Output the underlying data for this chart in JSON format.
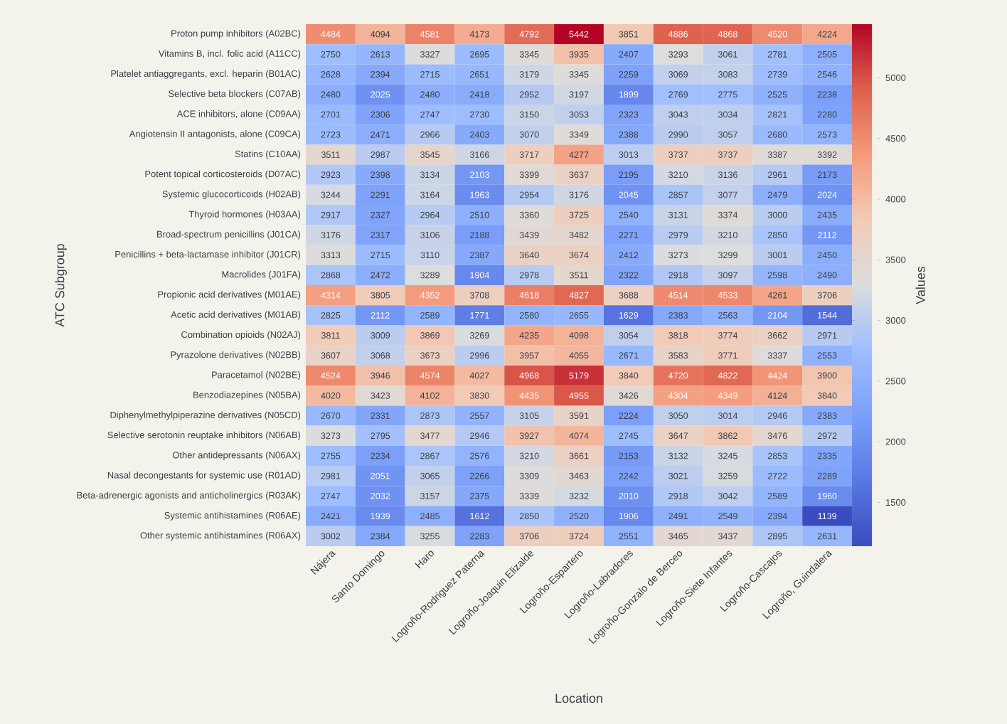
{
  "chart_data": {
    "type": "heatmap",
    "xlabel": "Location",
    "ylabel": "ATC Subgroup",
    "clabel": "Values",
    "data_labels": true,
    "categories": [
      "Nájera",
      "Santo Domingo",
      "Haro",
      "Logroño-Rodriguez Paterna",
      "Logroño-Joaquin Elizalde",
      "Logroño-Espartero",
      "Logroño-Labradores",
      "Logroño-Gonzalo de Berceo",
      "Logroño-Siete Infantes",
      "Logroño-Cascajos",
      "Logroño, Guindalera"
    ],
    "y_categories": [
      "Proton pump inhibitors (A02BC)",
      "Vitamins B, incl. folic acid (A11CC)",
      "Platelet antiaggregants, excl. heparin (B01AC)",
      "Selective beta blockers (C07AB)",
      "ACE inhibitors, alone (C09AA)",
      "Angiotensin II antagonists, alone (C09CA)",
      "Statins (C10AA)",
      "Potent topical corticosteroids (D07AC)",
      "Systemic glucocorticoids (H02AB)",
      "Thyroid hormones (H03AA)",
      "Broad-spectrum penicillins (J01CA)",
      "Penicillins + beta-lactamase inhibitor (J01CR)",
      "Macrolides (J01FA)",
      "Propionic acid derivatives (M01AE)",
      "Acetic acid derivatives (M01AB)",
      "Combination opioids (N02AJ)",
      "Pyrazolone derivatives (N02BB)",
      "Paracetamol (N02BE)",
      "Benzodiazepines (N05BA)",
      "Diphenylmethylpiperazine derivatives (N05CD)",
      "Selective serotonin reuptake inhibitors (N06AB)",
      "Other antidepressants (N06AX)",
      "Nasal decongestants for systemic use (R01AD)",
      "Beta-adrenergic agonists and anticholinergics (R03AK)",
      "Systemic antihistamines (R06AE)",
      "Other systemic antihistamines (R06AX)"
    ],
    "cells": [
      [
        4484,
        4094,
        4581,
        4173,
        4792,
        5442,
        3851,
        4886,
        4868,
        4520,
        4224
      ],
      [
        2750,
        2613,
        3327,
        2695,
        3345,
        3935,
        2407,
        3293,
        3061,
        2781,
        2505
      ],
      [
        2628,
        2394,
        2715,
        2651,
        3179,
        3345,
        2259,
        3069,
        3083,
        2739,
        2546
      ],
      [
        2480,
        2025,
        2480,
        2418,
        2952,
        3197,
        1899,
        2769,
        2775,
        2525,
        2238
      ],
      [
        2701,
        2306,
        2747,
        2730,
        3150,
        3053,
        2323,
        3043,
        3034,
        2821,
        2280
      ],
      [
        2723,
        2471,
        2966,
        2403,
        3070,
        3349,
        2388,
        2990,
        3057,
        2680,
        2573
      ],
      [
        3511,
        2987,
        3545,
        3166,
        3717,
        4277,
        3013,
        3737,
        3737,
        3387,
        3392
      ],
      [
        2923,
        2398,
        3134,
        2103,
        3399,
        3637,
        2195,
        3210,
        3136,
        2961,
        2173
      ],
      [
        3244,
        2291,
        3164,
        1963,
        2954,
        3176,
        2045,
        2857,
        3077,
        2479,
        2024
      ],
      [
        2917,
        2327,
        2964,
        2510,
        3360,
        3725,
        2540,
        3131,
        3374,
        3000,
        2435
      ],
      [
        3176,
        2317,
        3106,
        2188,
        3439,
        3482,
        2271,
        2979,
        3210,
        2850,
        2112
      ],
      [
        3313,
        2715,
        3110,
        2387,
        3640,
        3674,
        2412,
        3273,
        3299,
        3001,
        2450
      ],
      [
        2868,
        2472,
        3289,
        1904,
        2978,
        3511,
        2322,
        2918,
        3097,
        2598,
        2490
      ],
      [
        4314,
        3805,
        4352,
        3708,
        4618,
        4827,
        3688,
        4514,
        4533,
        4261,
        3706
      ],
      [
        2825,
        2112,
        2589,
        1771,
        2580,
        2655,
        1629,
        2383,
        2563,
        2104,
        1544
      ],
      [
        3811,
        3009,
        3869,
        3269,
        4235,
        4098,
        3054,
        3818,
        3774,
        3662,
        2971
      ],
      [
        3607,
        3068,
        3673,
        2996,
        3957,
        4055,
        2671,
        3583,
        3771,
        3337,
        2553
      ],
      [
        4524,
        3946,
        4574,
        4027,
        4968,
        5179,
        3840,
        4720,
        4822,
        4424,
        3900
      ],
      [
        4020,
        3423,
        4102,
        3830,
        4435,
        4955,
        3426,
        4304,
        4349,
        4124,
        3840
      ],
      [
        2670,
        2331,
        2873,
        2557,
        3105,
        3591,
        2224,
        3050,
        3014,
        2946,
        2383
      ],
      [
        3273,
        2795,
        3477,
        2946,
        3927,
        4074,
        2745,
        3647,
        3862,
        3476,
        2972
      ],
      [
        2755,
        2234,
        2867,
        2576,
        3210,
        3661,
        2153,
        3132,
        3245,
        2853,
        2335
      ],
      [
        2981,
        2051,
        3065,
        2266,
        3309,
        3463,
        2242,
        3021,
        3259,
        2722,
        2289
      ],
      [
        2747,
        2032,
        3157,
        2375,
        3339,
        3232,
        2010,
        2918,
        3042,
        2589,
        1960
      ],
      [
        2421,
        1939,
        2485,
        1612,
        2850,
        2520,
        1906,
        2491,
        2549,
        2394,
        1139
      ],
      [
        3002,
        2384,
        3255,
        2283,
        3706,
        3724,
        2551,
        3465,
        3437,
        2895,
        2631
      ]
    ],
    "clim": [
      1139,
      5442
    ],
    "cticks": [
      1500,
      2000,
      2500,
      3000,
      3500,
      4000,
      4500,
      5000
    ]
  }
}
